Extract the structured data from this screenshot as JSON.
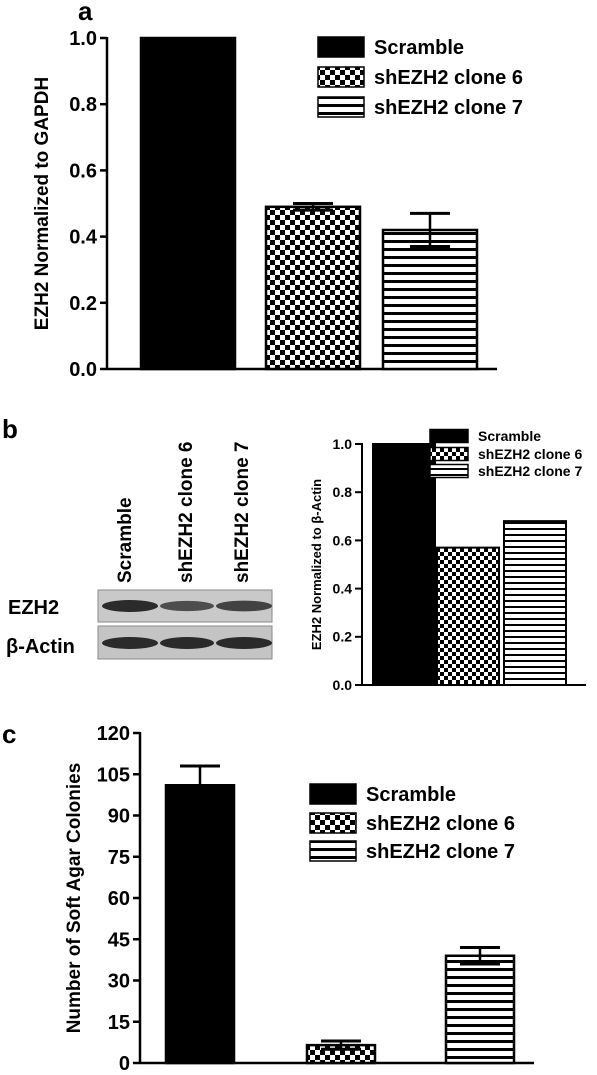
{
  "panels": {
    "a": {
      "letter": "a"
    },
    "b": {
      "letter": "b"
    },
    "c": {
      "letter": "c"
    }
  },
  "legend": [
    "Scramble",
    "shEZH2 clone 6",
    "shEZH2 clone 7"
  ],
  "blot": {
    "lanes": [
      "Scramble",
      "shEZH2 clone 6",
      "shEZH2 clone 7"
    ],
    "rows": [
      "EZH2",
      "β-Actin"
    ],
    "band_intensity": {
      "EZH2": [
        1.0,
        0.55,
        0.7
      ],
      "β-Actin": [
        1.0,
        1.0,
        1.0
      ]
    }
  },
  "chart_data": [
    {
      "panel": "a",
      "type": "bar",
      "categories": [
        "Scramble",
        "shEZH2 clone 6",
        "shEZH2 clone 7"
      ],
      "values": [
        1.0,
        0.49,
        0.42
      ],
      "errors": [
        0,
        0.01,
        0.05
      ],
      "patterns": [
        "solid",
        "checker",
        "hstripes"
      ],
      "ylabel": "EZH2 Normalized to GAPDH",
      "ylim": [
        0,
        1.0
      ],
      "yticks": [
        "0.0",
        "0.2",
        "0.4",
        "0.6",
        "0.8",
        "1.0"
      ],
      "legend": "top-right"
    },
    {
      "panel": "b",
      "type": "bar",
      "categories": [
        "Scramble",
        "shEZH2 clone 6",
        "shEZH2 clone 7"
      ],
      "values": [
        1.0,
        0.57,
        0.68
      ],
      "patterns": [
        "solid",
        "checker",
        "hstripes"
      ],
      "ylabel": "EZH2 Normalized to β-Actin",
      "ylim": [
        0,
        1.0
      ],
      "yticks": [
        "0.0",
        "0.2",
        "0.4",
        "0.6",
        "0.8",
        "1.0"
      ],
      "legend": "top-right"
    },
    {
      "panel": "c",
      "type": "bar",
      "categories": [
        "Scramble",
        "shEZH2 clone 6",
        "shEZH2 clone 7"
      ],
      "values": [
        101,
        6.5,
        39
      ],
      "errors": [
        7,
        1.5,
        3
      ],
      "patterns": [
        "solid",
        "checker",
        "hstripes"
      ],
      "ylabel": "Number of Soft Agar Colonies",
      "ylim": [
        0,
        120
      ],
      "yticks": [
        "0",
        "15",
        "30",
        "45",
        "60",
        "75",
        "90",
        "105",
        "120"
      ],
      "legend": "top-right"
    }
  ]
}
